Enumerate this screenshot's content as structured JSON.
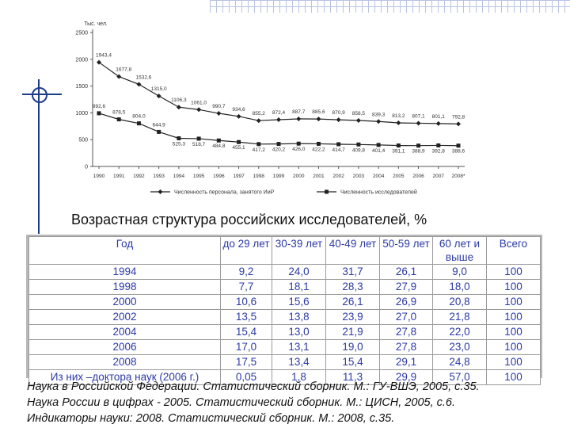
{
  "chart_data": {
    "type": "line",
    "ylabel": "Тыс. чел.",
    "ylim": [
      0,
      2500
    ],
    "yticks": [
      "0",
      "500",
      "1000",
      "1500",
      "2000",
      "2500"
    ],
    "categories": [
      "1990",
      "1991",
      "1992",
      "1993",
      "1994",
      "1995",
      "1996",
      "1997",
      "1998",
      "1999",
      "2000",
      "2001",
      "2002",
      "2003",
      "2004",
      "2005",
      "2006",
      "2007",
      "2008*"
    ],
    "series": [
      {
        "name": "Численность персонала, занятого ИиР",
        "values": [
          1943.4,
          1677.8,
          1532.6,
          1315.0,
          1106.3,
          1061.0,
          990.7,
          934.6,
          855.2,
          872.4,
          887.7,
          885.6,
          870.9,
          858.5,
          839.3,
          813.2,
          807.1,
          801.1,
          792.8
        ],
        "labels": [
          "1943,4",
          "1677,8",
          "1532,6",
          "1315,0",
          "1106,3",
          "1061,0",
          "990,7",
          "934,6",
          "855,2",
          "872,4",
          "887,7",
          "885,6",
          "870,9",
          "858,5",
          "839,3",
          "813,2",
          "807,1",
          "801,1",
          "792,8"
        ],
        "color": "#222222"
      },
      {
        "name": "Численность исследователей",
        "values": [
          992.6,
          878.5,
          804.0,
          644.9,
          525.3,
          518.7,
          484.8,
          455.1,
          417.2,
          420.2,
          426.0,
          422.2,
          414.7,
          409.8,
          401.4,
          391.1,
          388.9,
          392.8,
          388.6
        ],
        "labels": [
          "992,6",
          "878,5",
          "804,0",
          "644,9",
          "525,3",
          "518,7",
          "484,8",
          "455,1",
          "417,2",
          "420,2",
          "426,0",
          "422,2",
          "414,7",
          "409,8",
          "401,4",
          "391,1",
          "388,9",
          "392,8",
          "388,6"
        ],
        "color": "#222222"
      }
    ]
  },
  "table": {
    "title": "Возрастная структура российских исследователей, %",
    "headers": [
      "Год",
      "до 29 лет",
      "30-39 лет",
      "40-49 лет",
      "50-59 лет",
      "60 лет и выше",
      "Всего"
    ],
    "rows": [
      [
        "1994",
        "9,2",
        "24,0",
        "31,7",
        "26,1",
        "9,0",
        "100"
      ],
      [
        "1998",
        "7,7",
        "18,1",
        "28,3",
        "27,9",
        "18,0",
        "100"
      ],
      [
        "2000",
        "10,6",
        "15,6",
        "26,1",
        "26,9",
        "20,8",
        "100"
      ],
      [
        "2002",
        "13,5",
        "13,8",
        "23,9",
        "27,0",
        "21,8",
        "100"
      ],
      [
        "2004",
        "15,4",
        "13,0",
        "21,9",
        "27,8",
        "22,0",
        "100"
      ],
      [
        "2006",
        "17,0",
        "13,1",
        "19,0",
        "27,8",
        "23,0",
        "100"
      ],
      [
        "2008",
        "17,5",
        "13,4",
        "15,4",
        "29,1",
        "24,8",
        "100"
      ],
      [
        "Из них –доктора наук (2006 г.)",
        "0,05",
        "1,8",
        "11,3",
        "29,9",
        "57,0",
        "100"
      ]
    ]
  },
  "references": [
    "Наука в Российской Федерации. Статистический сборник. М.: ГУ-ВШЭ, 2005, с.35.",
    "Наука России в цифрах - 2005. Статистический сборник. М.: ЦИСН, 2005, с.6.",
    "Индикаторы науки: 2008. Статистический сборник. М.: 2008, с.35."
  ]
}
